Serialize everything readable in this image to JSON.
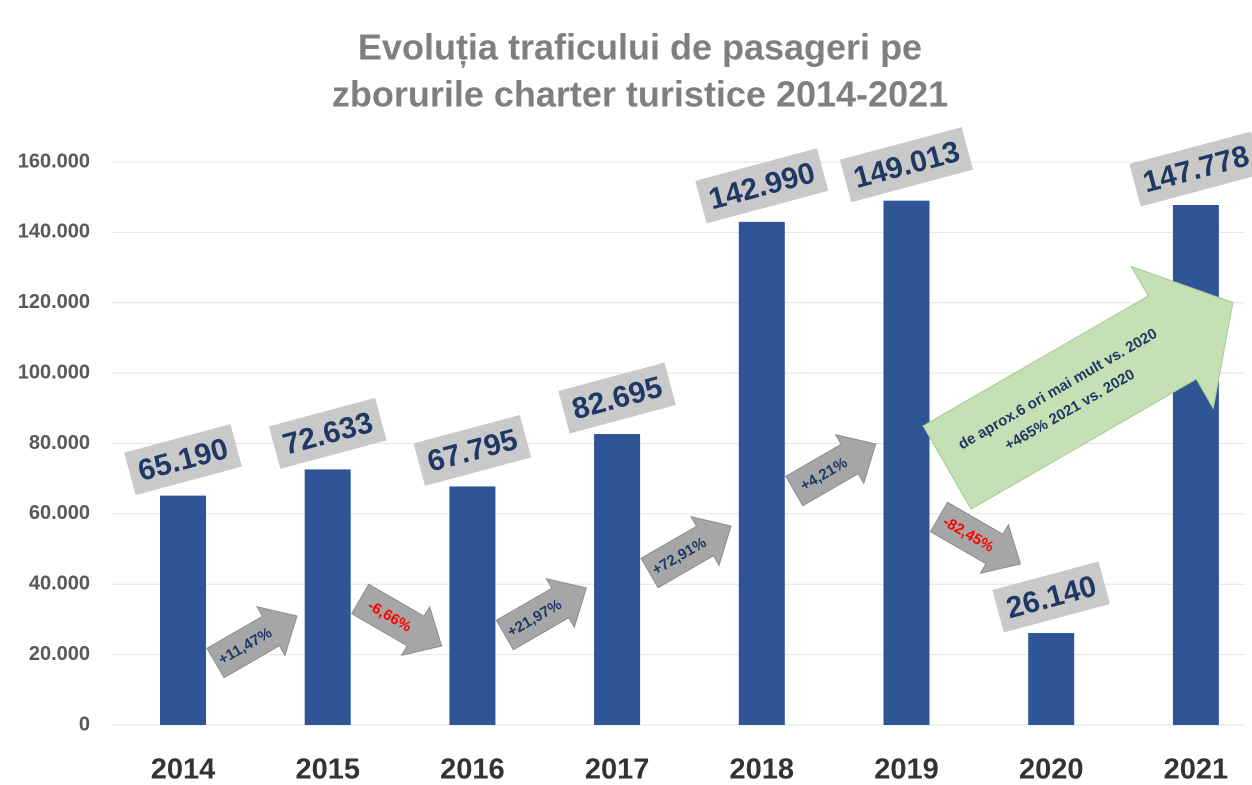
{
  "chart_data": {
    "type": "bar",
    "title_lines": [
      "Evoluția traficului de pasageri pe",
      "zborurile charter turistice 2014-2021"
    ],
    "categories": [
      "2014",
      "2015",
      "2016",
      "2017",
      "2018",
      "2019",
      "2020",
      "2021"
    ],
    "values": [
      65190,
      72633,
      67795,
      82695,
      142990,
      149013,
      26140,
      147778
    ],
    "value_labels": [
      "65.190",
      "72.633",
      "67.795",
      "82.695",
      "142.990",
      "149.013",
      "26.140",
      "147.778"
    ],
    "color": "#2f5597",
    "ylim": [
      0,
      160000
    ],
    "yticks": [
      0,
      {
        "value": 20000,
        "label": "20.000"
      },
      {
        "value": 40000,
        "label": "40.000"
      },
      {
        "value": 60000,
        "label": "60.000"
      },
      {
        "value": 80000,
        "label": "80.000"
      },
      {
        "value": 100000,
        "label": "100.000"
      },
      {
        "value": 120000,
        "label": "120.000"
      },
      {
        "value": 140000,
        "label": "140.000"
      },
      {
        "value": 160000,
        "label": "160.000"
      }
    ],
    "grid": true,
    "annotations": [
      {
        "text": "+11,47%",
        "color": "#1f3864",
        "direction": "up"
      },
      {
        "text": "-6,66%",
        "color": "#ff0000",
        "direction": "down"
      },
      {
        "text": "+21,97%",
        "color": "#1f3864",
        "direction": "up"
      },
      {
        "text": "+72,91%",
        "color": "#1f3864",
        "direction": "up"
      },
      {
        "text": "+4,21%",
        "color": "#1f3864",
        "direction": "up"
      },
      {
        "text": "-82,45%",
        "color": "#ff0000",
        "direction": "down"
      }
    ],
    "big_annotation": {
      "lines": [
        "de aprox.6 ori mai mult vs. 2020",
        "+465% 2021 vs. 2020"
      ],
      "color": "#1f3864",
      "fill": "#c5e0b4"
    }
  }
}
